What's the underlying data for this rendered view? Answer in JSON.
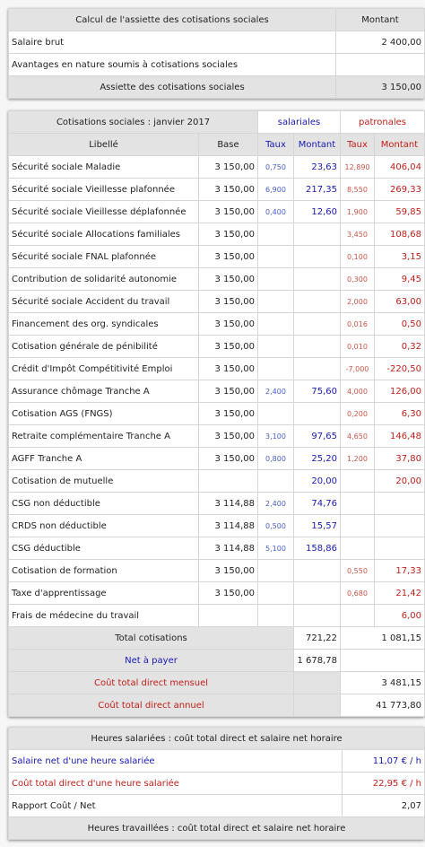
{
  "assiette": {
    "header": {
      "label": "Calcul de l'assiette des cotisations sociales",
      "amount": "Montant"
    },
    "rows": [
      {
        "label": "Salaire brut",
        "value": "2 400,00"
      },
      {
        "label": "Avantages en nature soumis à cotisations sociales",
        "value": ""
      }
    ],
    "total": {
      "label": "Assiette des cotisations sociales",
      "value": "3 150,00"
    }
  },
  "cotisations": {
    "title": "Cotisations sociales : janvier 2017",
    "salariales": "salariales",
    "patronales": "patronales",
    "cols": {
      "libelle": "Libellé",
      "base": "Base",
      "taux": "Taux",
      "montant": "Montant"
    },
    "rows": [
      {
        "label": "Sécurité sociale Maladie",
        "base": "3 150,00",
        "st": "0,750",
        "sm": "23,63",
        "pt": "12,890",
        "pm": "406,04"
      },
      {
        "label": "Sécurité sociale Vieillesse plafonnée",
        "base": "3 150,00",
        "st": "6,900",
        "sm": "217,35",
        "pt": "8,550",
        "pm": "269,33"
      },
      {
        "label": "Sécurité sociale Vieillesse déplafonnée",
        "base": "3 150,00",
        "st": "0,400",
        "sm": "12,60",
        "pt": "1,900",
        "pm": "59,85"
      },
      {
        "label": "Sécurité sociale Allocations familiales",
        "base": "3 150,00",
        "st": "",
        "sm": "",
        "pt": "3,450",
        "pm": "108,68"
      },
      {
        "label": "Sécurité sociale FNAL plafonnée",
        "base": "3 150,00",
        "st": "",
        "sm": "",
        "pt": "0,100",
        "pm": "3,15"
      },
      {
        "label": "Contribution de solidarité autonomie",
        "base": "3 150,00",
        "st": "",
        "sm": "",
        "pt": "0,300",
        "pm": "9,45"
      },
      {
        "label": "Sécurité sociale Accident du travail",
        "base": "3 150,00",
        "st": "",
        "sm": "",
        "pt": "2,000",
        "pm": "63,00"
      },
      {
        "label": "Financement des org. syndicales",
        "base": "3 150,00",
        "st": "",
        "sm": "",
        "pt": "0,016",
        "pm": "0,50"
      },
      {
        "label": "Cotisation générale de pénibilité",
        "base": "3 150,00",
        "st": "",
        "sm": "",
        "pt": "0,010",
        "pm": "0,32"
      },
      {
        "label": "Crédit d'Impôt Compétitivité Emploi",
        "base": "3 150,00",
        "st": "",
        "sm": "",
        "pt": "-7,000",
        "pm": "-220,50"
      },
      {
        "label": "Assurance chômage Tranche A",
        "base": "3 150,00",
        "st": "2,400",
        "sm": "75,60",
        "pt": "4,000",
        "pm": "126,00"
      },
      {
        "label": "Cotisation AGS (FNGS)",
        "base": "3 150,00",
        "st": "",
        "sm": "",
        "pt": "0,200",
        "pm": "6,30"
      },
      {
        "label": "Retraite complémentaire Tranche A",
        "base": "3 150,00",
        "st": "3,100",
        "sm": "97,65",
        "pt": "4,650",
        "pm": "146,48"
      },
      {
        "label": "AGFF Tranche A",
        "base": "3 150,00",
        "st": "0,800",
        "sm": "25,20",
        "pt": "1,200",
        "pm": "37,80"
      },
      {
        "label": "Cotisation de mutuelle",
        "base": "",
        "st": "",
        "sm": "20,00",
        "pt": "",
        "pm": "20,00"
      },
      {
        "label": "CSG non déductible",
        "base": "3 114,88",
        "st": "2,400",
        "sm": "74,76",
        "pt": "",
        "pm": ""
      },
      {
        "label": "CRDS non déductible",
        "base": "3 114,88",
        "st": "0,500",
        "sm": "15,57",
        "pt": "",
        "pm": ""
      },
      {
        "label": "CSG déductible",
        "base": "3 114,88",
        "st": "5,100",
        "sm": "158,86",
        "pt": "",
        "pm": ""
      },
      {
        "label": "Cotisation de formation",
        "base": "3 150,00",
        "st": "",
        "sm": "",
        "pt": "0,550",
        "pm": "17,33"
      },
      {
        "label": "Taxe d'apprentissage",
        "base": "3 150,00",
        "st": "",
        "sm": "",
        "pt": "0,680",
        "pm": "21,42"
      },
      {
        "label": "Frais de médecine du travail",
        "base": "",
        "st": "",
        "sm": "",
        "pt": "",
        "pm": "6,00"
      }
    ],
    "total": {
      "label": "Total cotisations",
      "sal": "721,22",
      "pat": "1 081,15"
    },
    "net": {
      "label": "Net à payer",
      "value": "1 678,78"
    },
    "cout_mensuel": {
      "label": "Coût total direct mensuel",
      "value": "3 481,15"
    },
    "cout_annuel": {
      "label": "Coût total direct annuel",
      "value": "41 773,80"
    }
  },
  "heures": {
    "title": "Heures salariées : coût total direct et salaire net horaire",
    "rows": [
      {
        "label": "Salaire net d'une heure salariée",
        "value": "11,07 € / h"
      },
      {
        "label": "Coût total direct d'une heure salariée",
        "value": "22,95 € / h"
      },
      {
        "label": "Rapport Coût / Net",
        "value": "2,07"
      }
    ],
    "title2": "Heures travaillées : coût total direct et salaire net horaire"
  },
  "colors": {
    "blue": "#1a1ab0",
    "red": "#c0201a",
    "header_bg": "#e3e3e3"
  }
}
